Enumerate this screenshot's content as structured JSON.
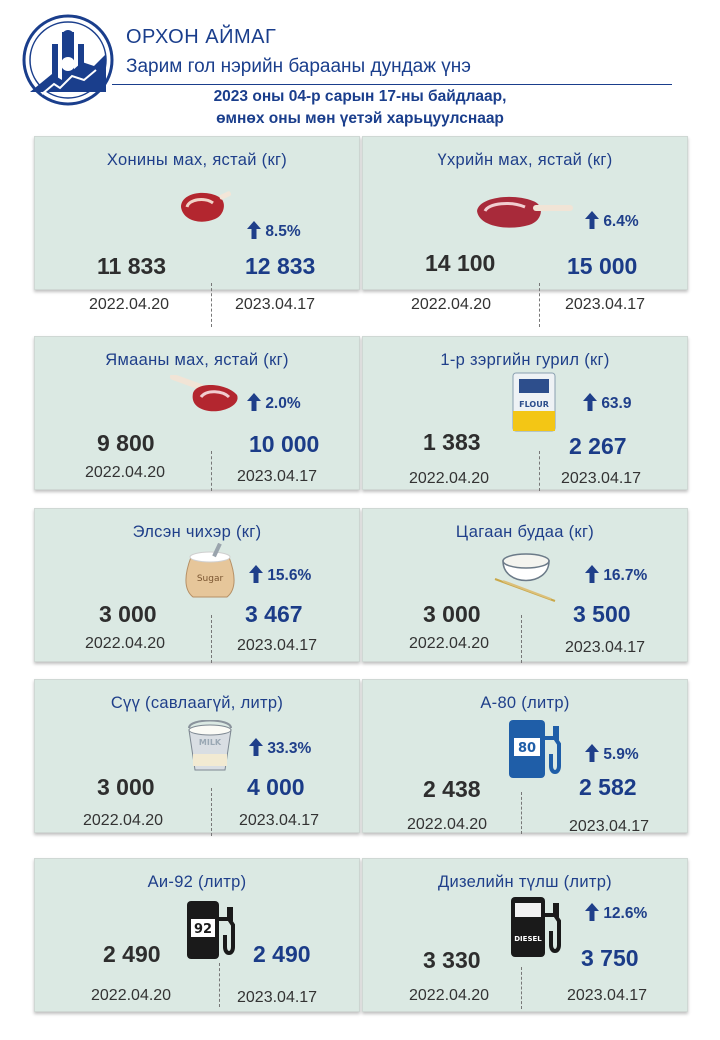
{
  "header": {
    "region": "ОРХОН АЙМАГ",
    "subtitle": "Зарим гол нэрийн барааны дундаж үнэ",
    "date_line1": "2023 оны 04-р сарын 17-ны байдлаар,",
    "date_line2": "өмнөх оны мөн үетэй харьцуулснаар"
  },
  "colors": {
    "accent": "#1f3f8a",
    "card_bg": "#dbe9e3"
  },
  "items": [
    {
      "title": "Хонины мах, ястай (кг)",
      "icon": "mutton-icon",
      "change": "8.5%",
      "old_price": "11 833",
      "new_price": "12 833",
      "old_date": "2022.04.20",
      "new_date": "2023.04.17"
    },
    {
      "title": "Үхрийн мах, ястай (кг)",
      "icon": "beef-icon",
      "change": "6.4%",
      "old_price": "14 100",
      "new_price": "15 000",
      "old_date": "2022.04.20",
      "new_date": "2023.04.17"
    },
    {
      "title": "Ямааны мах, ястай (кг)",
      "icon": "goat-meat-icon",
      "change": "2.0%",
      "old_price": "9 800",
      "new_price": "10 000",
      "old_date": "2022.04.20",
      "new_date": "2023.04.17"
    },
    {
      "title": "1-р зэргийн гурил (кг)",
      "icon": "flour-icon",
      "change": "63.9",
      "old_price": "1 383",
      "new_price": "2 267",
      "old_date": "2022.04.20",
      "new_date": "2023.04.17"
    },
    {
      "title": "Элсэн чихэр (кг)",
      "icon": "sugar-sack-icon",
      "change": "15.6%",
      "old_price": "3 000",
      "new_price": "3 467",
      "old_date": "2022.04.20",
      "new_date": "2023.04.17"
    },
    {
      "title": "Цагаан будаа (кг)",
      "icon": "rice-bowl-icon",
      "change": "16.7%",
      "old_price": "3 000",
      "new_price": "3 500",
      "old_date": "2022.04.20",
      "new_date": "2023.04.17"
    },
    {
      "title": "Сүү (савлаагүй, литр)",
      "icon": "milk-bucket-icon",
      "change": "33.3%",
      "old_price": "3 000",
      "new_price": "4 000",
      "old_date": "2022.04.20",
      "new_date": "2023.04.17"
    },
    {
      "title": "А-80 (литр)",
      "icon": "fuel-pump-80-icon",
      "change": "5.9%",
      "old_price": "2 438",
      "new_price": "2 582",
      "old_date": "2022.04.20",
      "new_date": "2023.04.17"
    },
    {
      "title": "Аи-92 (литр)",
      "icon": "fuel-pump-92-icon",
      "change": "",
      "old_price": "2 490",
      "new_price": "2 490",
      "old_date": "2022.04.20",
      "new_date": "2023.04.17"
    },
    {
      "title": "Дизелийн түлш (литр)",
      "icon": "fuel-pump-diesel-icon",
      "change": "12.6%",
      "old_price": "3 330",
      "new_price": "3 750",
      "old_date": "2022.04.20",
      "new_date": "2023.04.17"
    }
  ],
  "icon_labels": {
    "flour": "FLOUR",
    "sugar": "Sugar",
    "milk": "MILK",
    "a80": "80",
    "ai92": "92",
    "diesel": "DIESEL"
  }
}
